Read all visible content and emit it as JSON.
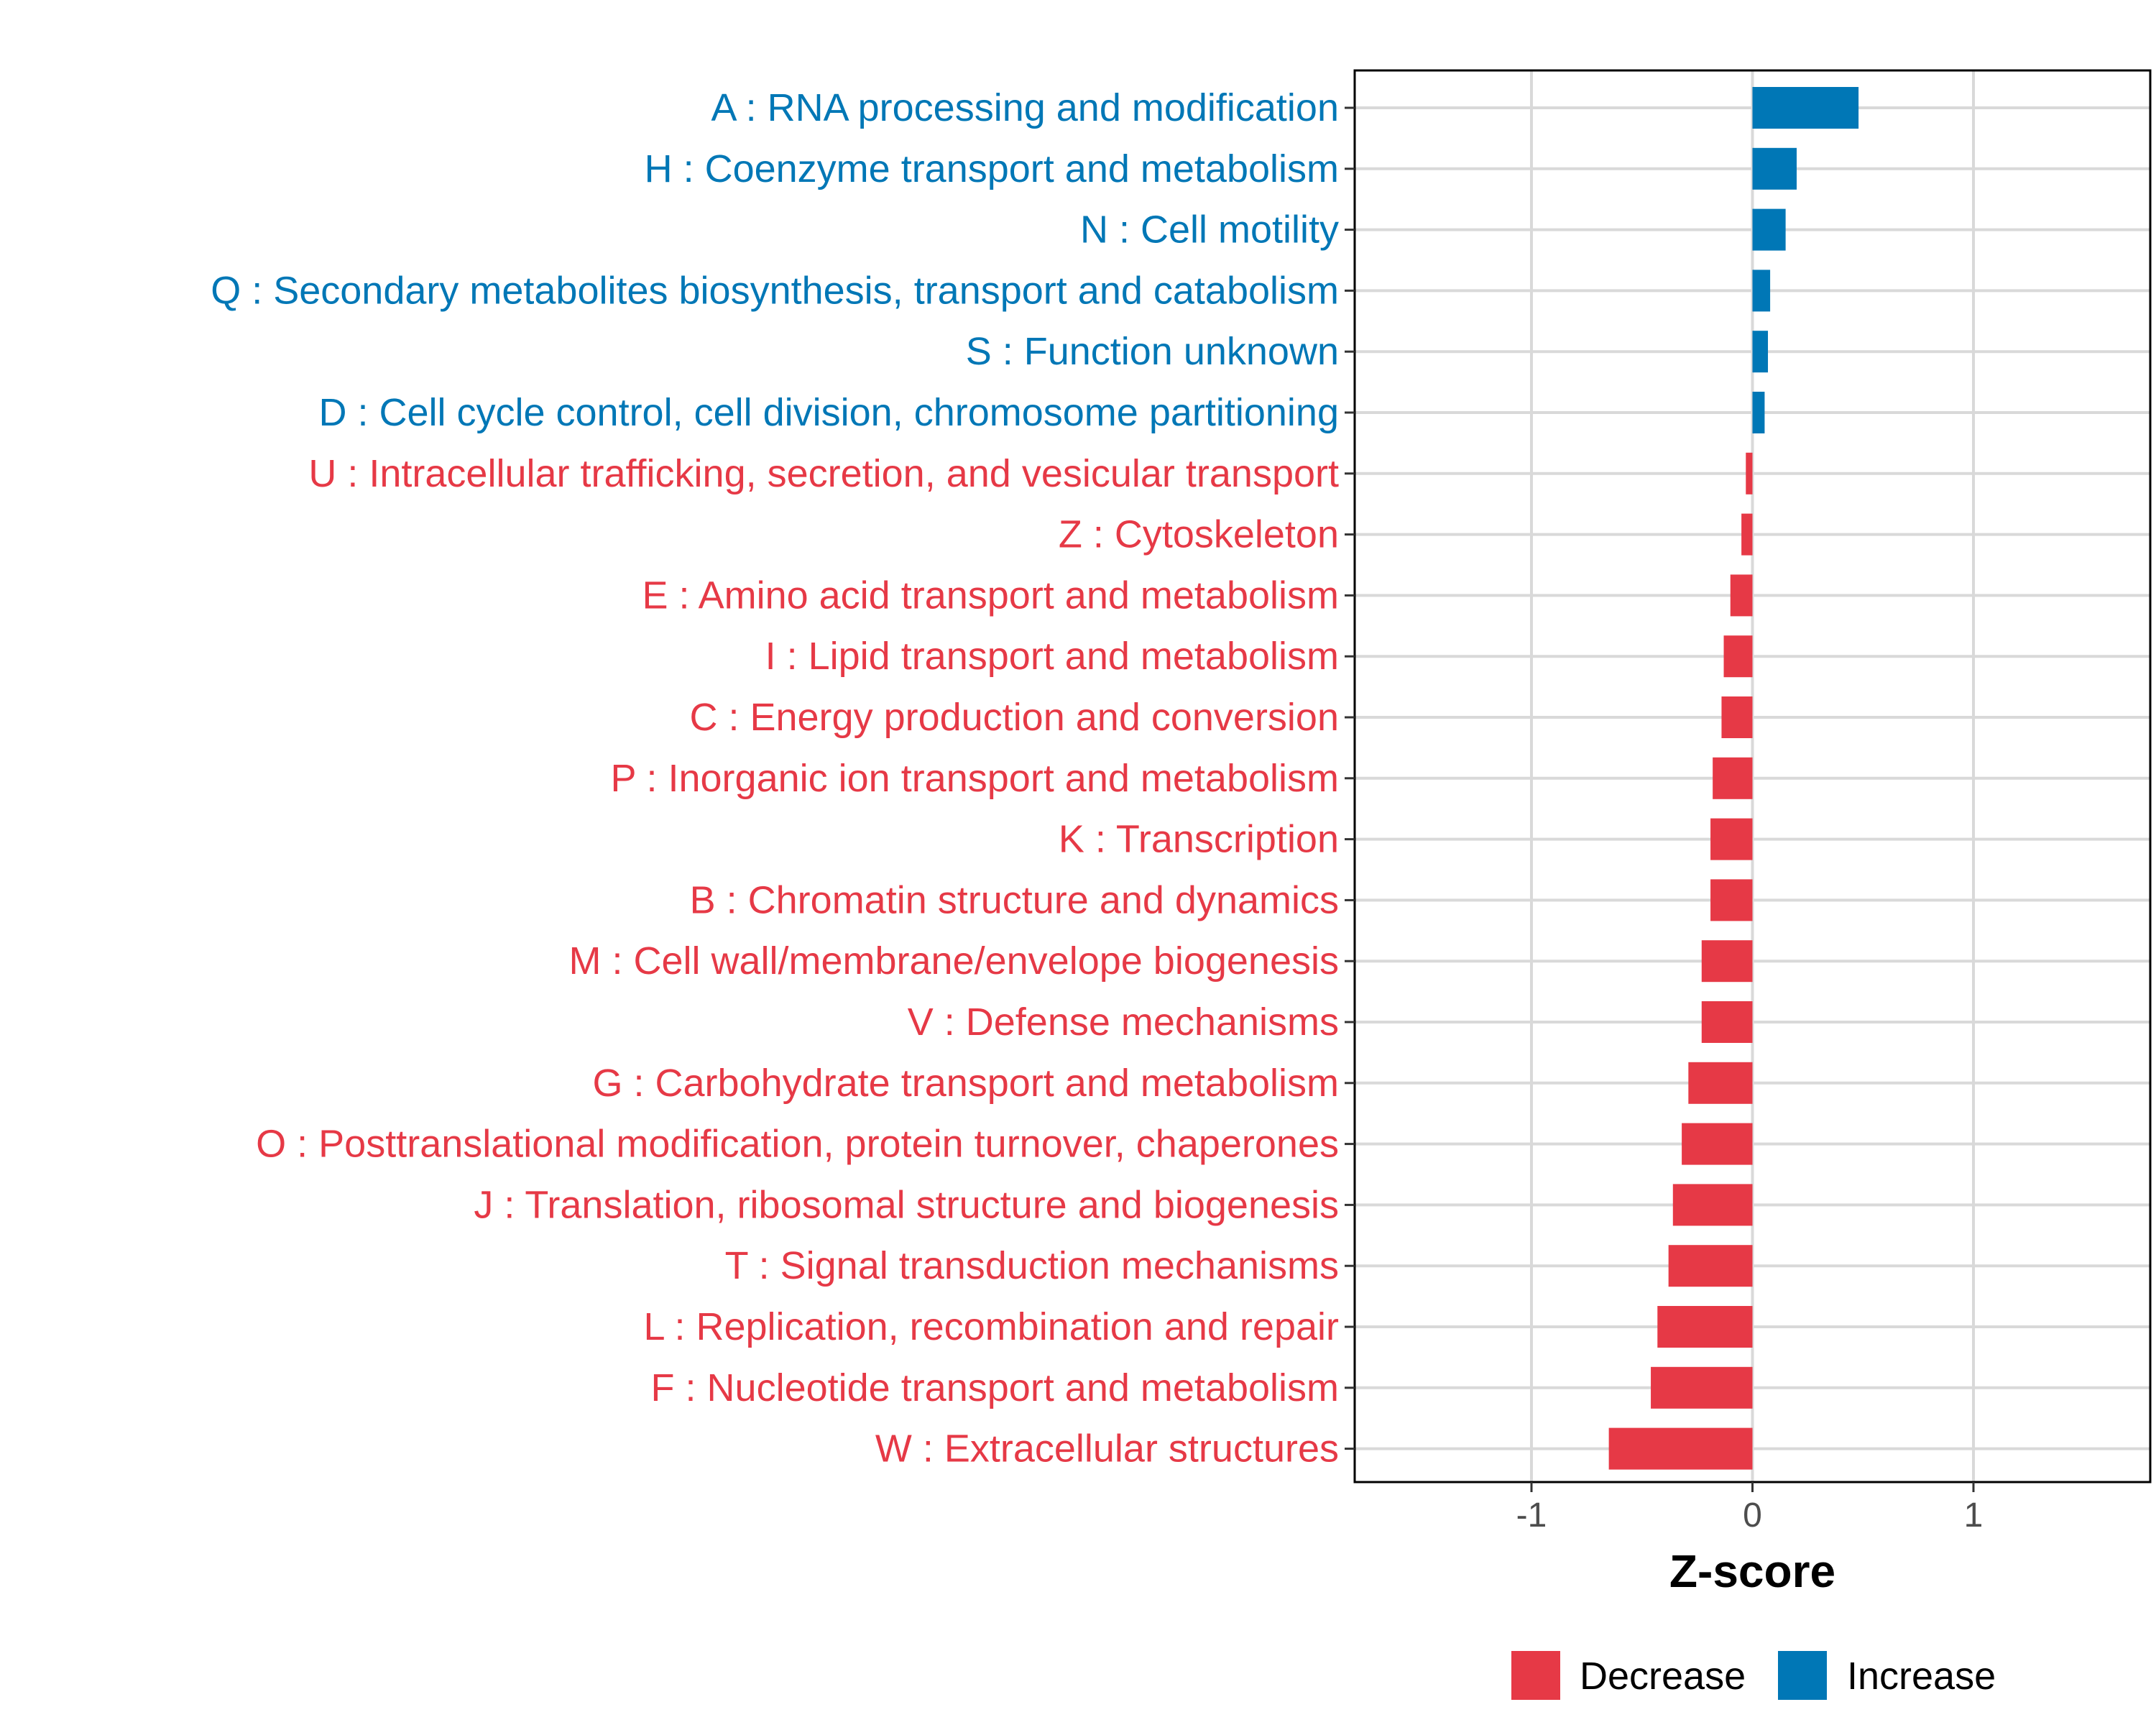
{
  "chart_data": {
    "type": "bar",
    "orientation": "horizontal",
    "xlabel": "Z-score",
    "ylabel": "",
    "xlim": [
      -1.8,
      1.8
    ],
    "xticks": [
      -1,
      0,
      1
    ],
    "xtick_labels": [
      "-1",
      "0",
      "1"
    ],
    "grid": true,
    "legend_position": "bottom",
    "legend": [
      {
        "name": "Decrease",
        "color": "#E63946"
      },
      {
        "name": "Increase",
        "color": "#0077B6"
      }
    ],
    "colors": {
      "Decrease": "#E63946",
      "Increase": "#0077B6"
    },
    "categories": [
      "A : RNA processing and modification",
      "H : Coenzyme transport and metabolism",
      "N : Cell motility",
      "Q : Secondary metabolites biosynthesis, transport and catabolism",
      "S : Function unknown",
      "D : Cell cycle control, cell division, chromosome partitioning",
      "U : Intracellular trafficking, secretion, and vesicular transport",
      "Z : Cytoskeleton",
      "E : Amino acid transport and metabolism",
      "I : Lipid transport and metabolism",
      "C : Energy production and conversion",
      "P : Inorganic ion transport and metabolism",
      "K : Transcription",
      "B : Chromatin structure and dynamics",
      "M : Cell wall/membrane/envelope biogenesis",
      "V : Defense mechanisms",
      "G : Carbohydrate transport and metabolism",
      "O : Posttranslational modification, protein turnover, chaperones",
      "J : Translation, ribosomal structure and biogenesis",
      "T : Signal transduction mechanisms",
      "L : Replication, recombination and repair",
      "F : Nucleotide transport and metabolism",
      "W : Extracellular structures"
    ],
    "values": [
      0.48,
      0.2,
      0.15,
      0.08,
      0.07,
      0.055,
      -0.03,
      -0.05,
      -0.1,
      -0.13,
      -0.14,
      -0.18,
      -0.19,
      -0.19,
      -0.23,
      -0.23,
      -0.29,
      -0.32,
      -0.36,
      -0.38,
      -0.43,
      -0.46,
      -0.65
    ],
    "groups": [
      "Increase",
      "Increase",
      "Increase",
      "Increase",
      "Increase",
      "Increase",
      "Decrease",
      "Decrease",
      "Decrease",
      "Decrease",
      "Decrease",
      "Decrease",
      "Decrease",
      "Decrease",
      "Decrease",
      "Decrease",
      "Decrease",
      "Decrease",
      "Decrease",
      "Decrease",
      "Decrease",
      "Decrease",
      "Decrease"
    ]
  }
}
